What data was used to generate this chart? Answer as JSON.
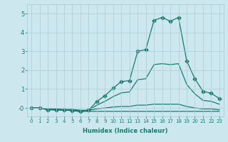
{
  "xlabel": "Humidex (Indice chaleur)",
  "bg_color": "#cce8ee",
  "line_color": "#1a7a6e",
  "grid_color": "#aacdd6",
  "xlim": [
    -0.5,
    23.5
  ],
  "ylim": [
    -0.45,
    5.5
  ],
  "yticks": [
    0,
    1,
    2,
    3,
    4,
    5
  ],
  "ytick_labels": [
    "-0",
    "1",
    "2",
    "3",
    "4",
    "5"
  ],
  "xticks": [
    0,
    1,
    2,
    3,
    4,
    5,
    6,
    7,
    8,
    9,
    10,
    11,
    12,
    13,
    14,
    15,
    16,
    17,
    18,
    19,
    20,
    21,
    22,
    23
  ],
  "lines": [
    {
      "x": [
        0,
        1,
        2,
        3,
        4,
        5,
        6,
        7,
        8,
        9,
        10,
        11,
        12,
        13,
        14,
        15,
        16,
        17,
        18,
        19,
        20,
        21,
        22,
        23
      ],
      "y": [
        0,
        0,
        -0.1,
        -0.1,
        -0.12,
        -0.13,
        -0.18,
        -0.18,
        -0.18,
        -0.18,
        -0.18,
        -0.18,
        -0.18,
        -0.18,
        -0.18,
        -0.18,
        -0.18,
        -0.18,
        -0.18,
        -0.18,
        -0.18,
        -0.18,
        -0.18,
        -0.18
      ],
      "marker": null,
      "lw": 0.9
    },
    {
      "x": [
        0,
        1,
        2,
        3,
        4,
        5,
        6,
        7,
        8,
        9,
        10,
        11,
        12,
        13,
        14,
        15,
        16,
        17,
        18,
        19,
        20,
        21,
        22,
        23
      ],
      "y": [
        0,
        0,
        -0.05,
        -0.05,
        -0.08,
        -0.08,
        -0.12,
        -0.12,
        -0.05,
        0.0,
        0.05,
        0.08,
        0.08,
        0.15,
        0.15,
        0.2,
        0.2,
        0.2,
        0.2,
        0.08,
        0.0,
        -0.05,
        -0.05,
        -0.1
      ],
      "marker": null,
      "lw": 0.9
    },
    {
      "x": [
        0,
        1,
        2,
        3,
        4,
        5,
        6,
        7,
        8,
        9,
        10,
        11,
        12,
        13,
        14,
        15,
        16,
        17,
        18,
        19,
        20,
        21,
        22,
        23
      ],
      "y": [
        0,
        0,
        -0.08,
        -0.08,
        -0.1,
        -0.1,
        -0.15,
        -0.12,
        0.15,
        0.35,
        0.6,
        0.8,
        0.85,
        1.5,
        1.55,
        2.3,
        2.35,
        2.3,
        2.35,
        1.25,
        0.75,
        0.4,
        0.35,
        0.2
      ],
      "marker": null,
      "lw": 0.9
    },
    {
      "x": [
        0,
        1,
        2,
        3,
        4,
        5,
        6,
        7,
        8,
        9,
        10,
        11,
        12,
        13,
        14,
        15,
        16,
        17,
        18,
        19,
        20,
        21,
        22,
        23
      ],
      "y": [
        0,
        0,
        -0.1,
        -0.1,
        -0.12,
        -0.14,
        -0.2,
        -0.12,
        0.35,
        0.65,
        1.05,
        1.4,
        1.45,
        3.0,
        3.1,
        4.65,
        4.8,
        4.6,
        4.8,
        2.5,
        1.55,
        0.88,
        0.78,
        0.5
      ],
      "marker": "D",
      "lw": 0.9
    }
  ]
}
